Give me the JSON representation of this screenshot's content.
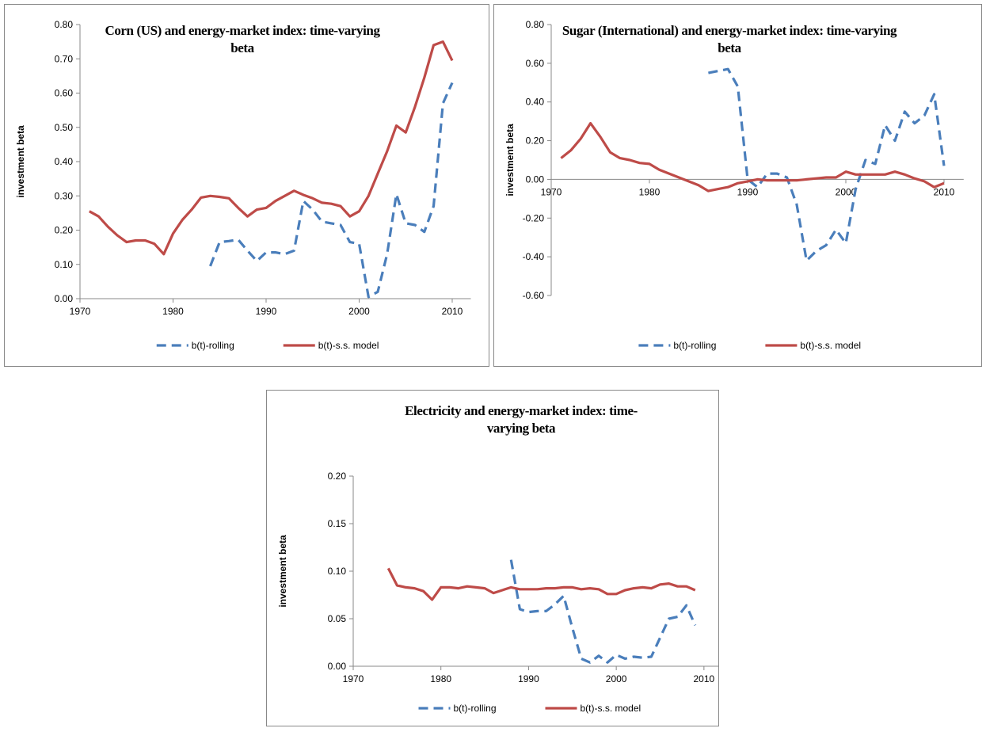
{
  "chart_data": [
    {
      "type": "line",
      "title": "Corn (US) and energy-market index: time-varying beta",
      "y_label": "investment beta",
      "x": [
        1971,
        1972,
        1973,
        1974,
        1975,
        1976,
        1977,
        1978,
        1979,
        1980,
        1981,
        1982,
        1983,
        1984,
        1985,
        1986,
        1987,
        1988,
        1989,
        1990,
        1991,
        1992,
        1993,
        1994,
        1995,
        1996,
        1997,
        1998,
        1999,
        2000,
        2001,
        2002,
        2003,
        2004,
        2005,
        2006,
        2007,
        2008,
        2009,
        2010
      ],
      "series": [
        {
          "name": "b(t)-rolling",
          "color": "#4a7ebb",
          "dashed": true,
          "values": [
            null,
            null,
            null,
            null,
            null,
            null,
            null,
            null,
            null,
            null,
            null,
            null,
            null,
            0.095,
            0.165,
            0.168,
            0.172,
            0.14,
            0.11,
            0.135,
            0.135,
            0.13,
            0.14,
            0.285,
            0.26,
            0.225,
            0.22,
            0.215,
            0.165,
            0.16,
            0.005,
            0.02,
            0.13,
            0.305,
            0.22,
            0.215,
            0.195,
            0.27,
            0.57,
            0.63
          ]
        },
        {
          "name": "b(t)-s.s. model",
          "color": "#be4b48",
          "dashed": false,
          "values": [
            0.255,
            0.24,
            0.21,
            0.185,
            0.165,
            0.17,
            0.17,
            0.16,
            0.13,
            0.19,
            0.23,
            0.26,
            0.295,
            0.3,
            0.297,
            0.293,
            0.265,
            0.24,
            0.26,
            0.265,
            0.285,
            0.3,
            0.315,
            0.303,
            0.293,
            0.28,
            0.277,
            0.27,
            0.24,
            0.255,
            0.3,
            0.365,
            0.43,
            0.505,
            0.485,
            0.56,
            0.645,
            0.74,
            0.75,
            0.695
          ]
        }
      ],
      "xlim": [
        1970,
        2012
      ],
      "xticks": [
        1970,
        1980,
        1990,
        2000,
        2010
      ],
      "ylim": [
        0,
        0.8
      ],
      "yticks": [
        {
          "value": 0,
          "label": "0.00"
        },
        {
          "value": 0.1,
          "label": "0.10"
        },
        {
          "value": 0.2,
          "label": "0.20"
        },
        {
          "value": 0.3,
          "label": "0.30"
        },
        {
          "value": 0.4,
          "label": "0.40"
        },
        {
          "value": 0.5,
          "label": "0.50"
        },
        {
          "value": 0.6,
          "label": "0.60"
        },
        {
          "value": 0.7,
          "label": "0.70"
        },
        {
          "value": 0.8,
          "label": "0.80"
        }
      ],
      "legend": "bottom"
    },
    {
      "type": "line",
      "title": "Sugar (International) and energy-market index: time-varying beta",
      "y_label": "investment beta",
      "x": [
        1971,
        1972,
        1973,
        1974,
        1975,
        1976,
        1977,
        1978,
        1979,
        1980,
        1981,
        1982,
        1983,
        1984,
        1985,
        1986,
        1987,
        1988,
        1989,
        1990,
        1991,
        1992,
        1993,
        1994,
        1995,
        1996,
        1997,
        1998,
        1999,
        2000,
        2001,
        2002,
        2003,
        2004,
        2005,
        2006,
        2007,
        2008,
        2009,
        2010,
        2011
      ],
      "series": [
        {
          "name": "b(t)-rolling",
          "color": "#4a7ebb",
          "dashed": true,
          "values": [
            null,
            null,
            null,
            null,
            null,
            null,
            null,
            null,
            null,
            null,
            null,
            null,
            null,
            null,
            null,
            0.55,
            0.56,
            0.57,
            0.48,
            0.0,
            -0.04,
            0.03,
            0.03,
            0.01,
            -0.13,
            -0.42,
            -0.37,
            -0.34,
            -0.26,
            -0.33,
            -0.05,
            0.1,
            0.08,
            0.28,
            0.2,
            0.35,
            0.29,
            0.33,
            0.44,
            0.07,
            null
          ]
        },
        {
          "name": "b(t)-s.s. model",
          "color": "#be4b48",
          "dashed": false,
          "values": [
            0.11,
            0.15,
            0.21,
            0.29,
            0.22,
            0.14,
            0.11,
            0.1,
            0.085,
            0.08,
            0.05,
            0.03,
            0.01,
            -0.01,
            -0.03,
            -0.06,
            -0.05,
            -0.04,
            -0.02,
            -0.01,
            0.0,
            -0.005,
            -0.005,
            -0.005,
            -0.005,
            0.0,
            0.005,
            0.01,
            0.01,
            0.04,
            0.025,
            0.025,
            0.025,
            0.025,
            0.04,
            0.025,
            0.005,
            -0.01,
            -0.04,
            -0.02,
            null
          ]
        }
      ],
      "xlim": [
        1970,
        2012
      ],
      "xticks": [
        1970,
        1980,
        1990,
        2000,
        2010
      ],
      "ylim": [
        -0.6,
        0.8
      ],
      "yticks": [
        {
          "value": -0.6,
          "label": "-0.60"
        },
        {
          "value": -0.4,
          "label": "-0.40"
        },
        {
          "value": -0.2,
          "label": "-0.20"
        },
        {
          "value": 0,
          "label": "0.00"
        },
        {
          "value": 0.2,
          "label": "0.20"
        },
        {
          "value": 0.4,
          "label": "0.40"
        },
        {
          "value": 0.6,
          "label": "0.60"
        },
        {
          "value": 0.8,
          "label": "0.80"
        }
      ],
      "legend": "bottom"
    },
    {
      "type": "line",
      "title": "Electricity and energy-market index: time-varying beta",
      "y_label": "investment beta",
      "x": [
        1974,
        1975,
        1976,
        1977,
        1978,
        1979,
        1980,
        1981,
        1982,
        1983,
        1984,
        1985,
        1986,
        1987,
        1988,
        1989,
        1990,
        1991,
        1992,
        1993,
        1994,
        1995,
        1996,
        1997,
        1998,
        1999,
        2000,
        2001,
        2002,
        2003,
        2004,
        2005,
        2006,
        2007,
        2008,
        2009
      ],
      "series": [
        {
          "name": "b(t)-rolling",
          "color": "#4a7ebb",
          "dashed": true,
          "values": [
            null,
            null,
            null,
            null,
            null,
            null,
            null,
            null,
            null,
            null,
            null,
            null,
            null,
            null,
            0.112,
            0.06,
            0.057,
            0.058,
            0.058,
            0.065,
            0.074,
            0.04,
            0.008,
            0.004,
            0.011,
            0.004,
            0.012,
            0.008,
            0.01,
            0.009,
            0.01,
            0.03,
            0.05,
            0.052,
            0.064,
            0.043
          ]
        },
        {
          "name": "b(t)-s.s. model",
          "color": "#be4b48",
          "dashed": false,
          "values": [
            0.103,
            0.085,
            0.083,
            0.082,
            0.079,
            0.07,
            0.083,
            0.083,
            0.082,
            0.084,
            0.083,
            0.082,
            0.077,
            0.08,
            0.083,
            0.081,
            0.081,
            0.081,
            0.082,
            0.082,
            0.083,
            0.083,
            0.081,
            0.082,
            0.081,
            0.076,
            0.076,
            0.08,
            0.082,
            0.083,
            0.082,
            0.086,
            0.087,
            0.084,
            0.084,
            0.08
          ]
        }
      ],
      "xlim": [
        1970,
        2012
      ],
      "xticks": [
        1970,
        1980,
        1990,
        2000,
        2010
      ],
      "ylim": [
        0,
        0.2
      ],
      "yticks": [
        {
          "value": 0,
          "label": "0.00"
        },
        {
          "value": 0.05,
          "label": "0.05"
        },
        {
          "value": 0.1,
          "label": "0.10"
        },
        {
          "value": 0.15,
          "label": "0.15"
        },
        {
          "value": 0.2,
          "label": "0.20"
        }
      ],
      "legend": "bottom"
    }
  ]
}
